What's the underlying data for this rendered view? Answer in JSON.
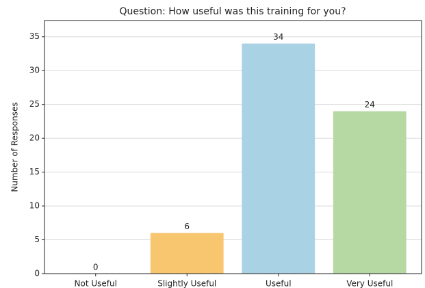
{
  "chart_data": {
    "type": "bar",
    "title": "Question: How useful was this training for you?",
    "y_label": "Number of Responses",
    "categories": [
      "Not Useful",
      "Slightly Useful",
      "Useful",
      "Very Useful"
    ],
    "values": [
      0,
      6,
      34,
      24
    ],
    "colors": [
      "#f4a3a3",
      "#f7c66f",
      "#a9d3e4",
      "#b6d9a4"
    ],
    "ylim": [
      0,
      37.4
    ],
    "yticks": [
      0,
      5,
      10,
      15,
      20,
      25,
      30,
      35
    ],
    "grid": true
  }
}
